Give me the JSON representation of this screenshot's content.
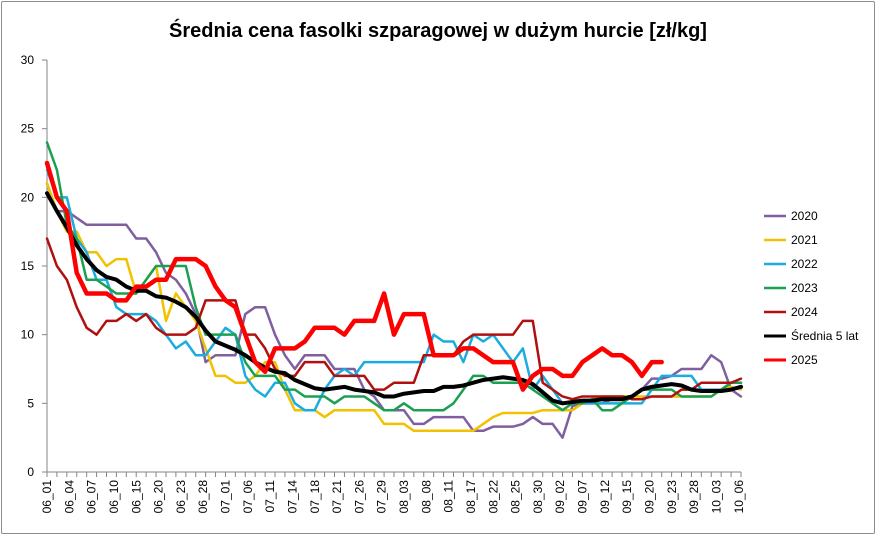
{
  "chart_data": {
    "type": "line",
    "title": "Średnia cena fasolki szparagowej w dużym hurcie [zł/kg]",
    "xlabel": "",
    "ylabel": "",
    "ylim": [
      0,
      30
    ],
    "yticks": [
      0,
      5,
      10,
      15,
      20,
      25,
      30
    ],
    "grid": false,
    "legend": "right",
    "x_tick_labels": [
      "06_01",
      "06_04",
      "06_07",
      "06_10",
      "06_15",
      "06_20",
      "06_23",
      "06_28",
      "07_01",
      "07_06",
      "07_11",
      "07_14",
      "07_18",
      "07_21",
      "07_26",
      "07_29",
      "08_03",
      "08_08",
      "08_11",
      "08_17",
      "08_22",
      "08_25",
      "08_30",
      "09_02",
      "09_07",
      "09_12",
      "09_15",
      "09_20",
      "09_23",
      "09_28",
      "10_03",
      "10_06"
    ],
    "n_points": 71,
    "series": [
      {
        "name": "2020",
        "color": "#7f5f9f",
        "width": 2.5,
        "values": [
          21,
          19,
          19,
          18.5,
          18,
          18,
          18,
          18,
          18,
          17,
          17,
          16,
          14.5,
          14,
          13,
          11.5,
          8,
          8.5,
          8.5,
          8.5,
          11.5,
          12,
          12,
          10,
          8.5,
          7.5,
          8.5,
          8.5,
          8.5,
          7.5,
          7.5,
          7.5,
          6,
          5.5,
          4.5,
          4.5,
          4.5,
          3.5,
          3.5,
          4,
          4,
          4,
          4,
          3,
          3,
          3.3,
          3.3,
          3.3,
          3.5,
          4,
          3.5,
          3.5,
          2.5,
          4.8,
          5,
          5,
          5,
          5.3,
          5.5,
          5.5,
          6,
          6.8,
          6.8,
          7,
          7.5,
          7.5,
          7.5,
          8.5,
          8,
          6,
          5.5
        ]
      },
      {
        "name": "2021",
        "color": "#f2c200",
        "width": 2.5,
        "values": [
          21,
          19,
          17.5,
          17.5,
          16,
          16,
          15,
          15.5,
          15.5,
          13,
          14,
          15,
          11,
          13,
          12,
          11,
          9,
          7,
          7,
          6.5,
          6.5,
          7,
          8,
          8,
          6,
          4.5,
          4.5,
          4.5,
          4,
          4.5,
          4.5,
          4.5,
          4.5,
          4.5,
          3.5,
          3.5,
          3.5,
          3,
          3,
          3,
          3,
          3,
          3,
          3,
          3.5,
          4,
          4.3,
          4.3,
          4.3,
          4.3,
          4.5,
          4.5,
          4.5,
          4.5,
          5,
          5.3,
          5.5,
          5.5,
          5.5,
          5.5,
          5.5,
          5.5,
          5.5,
          5.5,
          5.5,
          5.5,
          5.5,
          5.5,
          6,
          6.2,
          6
        ]
      },
      {
        "name": "2022",
        "color": "#1cace0",
        "width": 2.5,
        "values": [
          22,
          20,
          20,
          17,
          16,
          14,
          14,
          12,
          11.5,
          11.5,
          11.5,
          11,
          10,
          9,
          9.5,
          8.5,
          8.5,
          9.5,
          10.5,
          10,
          7,
          6,
          5.5,
          6.5,
          6.5,
          5,
          4.5,
          4.5,
          6,
          7,
          7.5,
          7,
          8,
          8,
          8,
          8,
          8,
          8,
          8,
          10,
          9.5,
          9.5,
          8,
          10,
          9.5,
          10,
          9,
          8,
          9,
          6,
          7,
          6,
          5,
          5,
          5,
          5,
          5,
          5,
          5,
          5,
          5,
          6,
          7,
          7,
          7,
          7,
          6,
          6,
          6,
          6.5,
          6.5
        ]
      },
      {
        "name": "2023",
        "color": "#1aa050",
        "width": 2.5,
        "values": [
          24,
          22,
          18,
          17,
          14,
          14,
          13.5,
          13,
          13,
          13,
          14,
          15,
          15,
          15,
          15,
          12,
          10,
          10,
          10,
          10,
          8,
          7,
          7,
          7,
          6,
          6,
          5.5,
          5.5,
          5.5,
          5,
          5.5,
          5.5,
          5.5,
          5,
          4.5,
          4.5,
          5,
          4.5,
          4.5,
          4.5,
          4.5,
          5,
          6,
          7,
          7,
          6.5,
          6.5,
          6.5,
          6.5,
          6,
          5.5,
          5,
          4.5,
          5,
          5,
          5.3,
          4.5,
          4.5,
          5,
          5.5,
          6,
          6,
          6,
          6,
          5.5,
          5.5,
          5.5,
          5.5,
          6,
          6.5,
          6.5
        ]
      },
      {
        "name": "2024",
        "color": "#b01010",
        "width": 2.5,
        "values": [
          17,
          15,
          14,
          12,
          10.5,
          10,
          11,
          11,
          11.5,
          11,
          11.5,
          10.5,
          10,
          10,
          10,
          10.5,
          12.5,
          12.5,
          12.5,
          12.5,
          10,
          10,
          9,
          7.5,
          7,
          7,
          8,
          8,
          8,
          7,
          7,
          7,
          7,
          6,
          6,
          6.5,
          6.5,
          6.5,
          8.5,
          8.5,
          8.5,
          8.5,
          9.5,
          10,
          10,
          10,
          10,
          10,
          11,
          11,
          6.5,
          6,
          5.5,
          5.3,
          5.5,
          5.5,
          5.5,
          5.5,
          5.5,
          5.3,
          5.3,
          5.5,
          5.5,
          5.5,
          6,
          6,
          6.5,
          6.5,
          6.5,
          6.5,
          6.8
        ]
      },
      {
        "name": "Średnia 5 lat",
        "color": "#000000",
        "width": 4,
        "values": [
          20.3,
          19,
          17.8,
          16.5,
          15.5,
          14.7,
          14.2,
          14,
          13.5,
          13.2,
          13.2,
          12.8,
          12.7,
          12.4,
          12,
          11.3,
          10.3,
          9.5,
          9.2,
          8.9,
          8.5,
          8,
          7.6,
          7.3,
          7.2,
          6.7,
          6.4,
          6.1,
          6,
          6.1,
          6.2,
          6,
          5.9,
          5.8,
          5.5,
          5.5,
          5.7,
          5.8,
          5.9,
          5.9,
          6.2,
          6.2,
          6.3,
          6.5,
          6.7,
          6.8,
          6.9,
          6.8,
          6.7,
          6.4,
          5.8,
          5.2,
          5,
          5.1,
          5.2,
          5.2,
          5.3,
          5.3,
          5.3,
          5.5,
          6,
          6.2,
          6.3,
          6.4,
          6.3,
          6,
          5.9,
          5.9,
          5.9,
          6,
          6.2
        ]
      },
      {
        "name": "2025",
        "color": "#ff0000",
        "width": 4.5,
        "values": [
          22.5,
          20,
          19,
          14.5,
          13,
          13,
          13,
          12.5,
          12.5,
          13.5,
          13.5,
          14,
          14,
          15.5,
          15.5,
          15.5,
          15,
          13.5,
          12.5,
          12,
          10,
          8,
          7.3,
          9,
          9,
          9,
          9.5,
          10.5,
          10.5,
          10.5,
          10,
          11,
          11,
          11,
          13,
          10,
          11.5,
          11.5,
          11.5,
          8.5,
          8.5,
          8.5,
          9,
          9,
          8.5,
          8,
          8,
          8,
          6,
          7,
          7.5,
          7.5,
          7,
          7,
          8,
          8.5,
          9,
          8.5,
          8.5,
          8,
          7,
          8,
          8,
          null,
          null,
          null,
          null,
          null,
          null,
          null,
          null
        ]
      }
    ]
  }
}
